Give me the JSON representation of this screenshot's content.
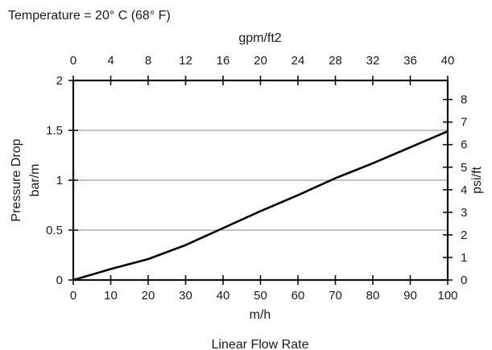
{
  "chart_data": {
    "type": "line",
    "title": "Temperature = 20° C (68° F)",
    "xlabel": "m/h",
    "x_caption": "Linear Flow Rate",
    "x2label": "gpm/ft2",
    "ylabel": "Pressure Drop",
    "y_unit": "bar/m",
    "y2label": "psi/ft",
    "xlim": [
      0,
      100
    ],
    "ylim": [
      0,
      2
    ],
    "x2lim": [
      0,
      40
    ],
    "y2lim": [
      0,
      8.843
    ],
    "x_ticks": [
      0,
      10,
      20,
      30,
      40,
      50,
      60,
      70,
      80,
      90,
      100
    ],
    "y_ticks": [
      0,
      0.5,
      1,
      1.5,
      2
    ],
    "x2_ticks": [
      0,
      4,
      8,
      12,
      16,
      20,
      24,
      28,
      32,
      36,
      40
    ],
    "y2_ticks": [
      0,
      1,
      2,
      3,
      4,
      5,
      6,
      7,
      8
    ],
    "y_tick_labels": [
      "0",
      "0.5",
      "1",
      "1.5",
      "2"
    ],
    "gridlines_y": [
      0.5,
      1,
      1.5
    ],
    "series": [
      {
        "x": [
          0,
          10,
          20,
          30,
          40,
          50,
          60,
          70,
          80,
          90,
          100
        ],
        "y": [
          0,
          0.11,
          0.21,
          0.35,
          0.52,
          0.69,
          0.85,
          1.02,
          1.17,
          1.33,
          1.49
        ]
      }
    ]
  }
}
